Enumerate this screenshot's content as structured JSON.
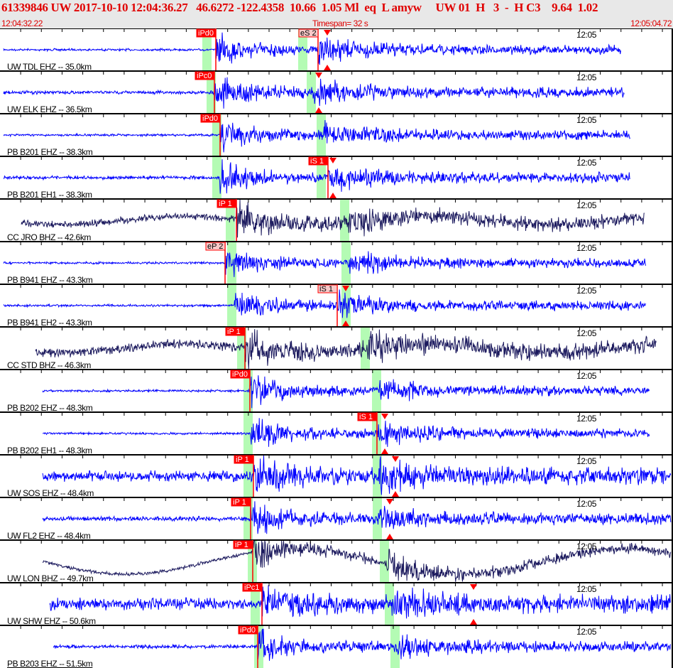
{
  "header": {
    "title": "61339846 UW 2017-10-10 12:04:36.27   46.6272 -122.4358  10.66  1.05 Ml  eq  L amyw     UW 01  H   3  -  H C3    9.64  1.02",
    "start_time": "12:04:32.22",
    "timespan": "Timespan=  32 s",
    "end_time": "12:05:04.72"
  },
  "minute_label": "12:05",
  "colors": {
    "trace": "#0000ff",
    "trace_bb": "#1c1a5e",
    "pick": "#ff0000",
    "pick_pale": "#f8c8c8",
    "window": "#b4fbb4"
  },
  "channels": [
    {
      "label": "UW TDL EHZ -- 35.0km",
      "picks": [
        "iPd0",
        "eS 2"
      ]
    },
    {
      "label": "UW ELK EHZ -- 36.5km",
      "picks": [
        "iPc0"
      ]
    },
    {
      "label": "PB B201 EHZ -- 38.3km",
      "picks": [
        "iPd0"
      ]
    },
    {
      "label": "PB B201 EH1 -- 38.3km",
      "picks": [
        "iS 1"
      ]
    },
    {
      "label": "CC JRO BHZ -- 42.6km",
      "picks": [
        "iP 1"
      ]
    },
    {
      "label": "PB B941 EHZ -- 43.3km",
      "picks": [
        "eP 2"
      ]
    },
    {
      "label": "PB B941 EH2 -- 43.3km",
      "picks": [
        "iS 1"
      ]
    },
    {
      "label": "CC STD BHZ -- 46.3km",
      "picks": [
        "iP 1"
      ]
    },
    {
      "label": "PB B202 EHZ -- 48.3km",
      "picks": [
        "iPd0"
      ]
    },
    {
      "label": "PB B202 EH1 -- 48.3km",
      "picks": [
        "iS 1"
      ]
    },
    {
      "label": "UW SOS EHZ -- 48.4km",
      "picks": [
        "iP 1"
      ]
    },
    {
      "label": "UW FL2 EHZ -- 48.4km",
      "picks": [
        "iP 1"
      ]
    },
    {
      "label": "UW LON BHZ -- 49.7km",
      "picks": [
        "iP 1"
      ]
    },
    {
      "label": "UW SHW EHZ -- 50.6km",
      "picks": [
        "iPc1"
      ]
    },
    {
      "label": "PB B203 EHZ -- 51.5km",
      "picks": [
        "iPd0"
      ]
    }
  ]
}
